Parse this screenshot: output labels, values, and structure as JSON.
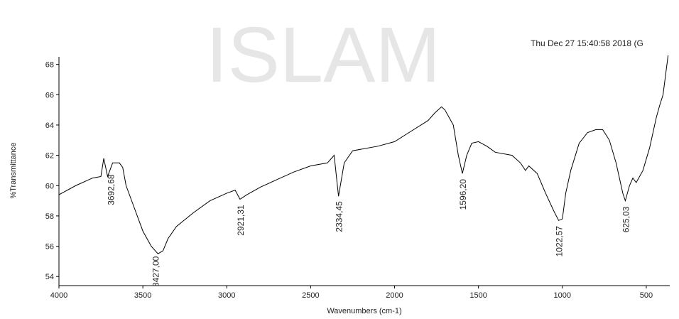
{
  "watermark": "ISLAM",
  "chart_data": {
    "type": "line",
    "title": "Thu Dec 27 15:40:58 2018 (G",
    "x_label": "Wavenumbers (cm-1)",
    "y_label": "%Transmittance",
    "xlim": [
      4000,
      360
    ],
    "ylim": [
      53.4,
      68.5
    ],
    "xticks": [
      4000,
      3500,
      3000,
      2500,
      2000,
      1500,
      1000,
      500
    ],
    "yticks": [
      54,
      56,
      58,
      60,
      62,
      64,
      66,
      68
    ],
    "series": [
      {
        "color": "#000000",
        "x": [
          4000,
          3900,
          3800,
          3750,
          3733,
          3710,
          3680,
          3640,
          3620,
          3600,
          3550,
          3500,
          3450,
          3410,
          3380,
          3350,
          3300,
          3200,
          3100,
          3000,
          2950,
          2921,
          2880,
          2800,
          2700,
          2600,
          2500,
          2400,
          2360,
          2334,
          2300,
          2250,
          2100,
          2000,
          1900,
          1800,
          1760,
          1720,
          1700,
          1650,
          1620,
          1596,
          1570,
          1540,
          1500,
          1450,
          1400,
          1300,
          1250,
          1220,
          1200,
          1150,
          1100,
          1050,
          1022,
          1000,
          980,
          950,
          900,
          850,
          800,
          760,
          720,
          680,
          640,
          625,
          600,
          580,
          560,
          520,
          480,
          440,
          420,
          400,
          370
        ],
        "values": [
          59.4,
          60.0,
          60.5,
          60.6,
          61.8,
          60.6,
          61.5,
          61.5,
          61.2,
          60.0,
          58.5,
          57.0,
          56.0,
          55.5,
          55.7,
          56.5,
          57.3,
          58.2,
          59.0,
          59.5,
          59.7,
          59.1,
          59.4,
          59.9,
          60.4,
          60.9,
          61.3,
          61.5,
          62.0,
          59.3,
          61.5,
          62.3,
          62.6,
          62.9,
          63.6,
          64.3,
          64.8,
          65.2,
          65.0,
          64.0,
          62.0,
          60.8,
          62.0,
          62.8,
          62.9,
          62.6,
          62.2,
          62.0,
          61.5,
          61.0,
          61.3,
          60.8,
          59.5,
          58.3,
          57.7,
          57.8,
          59.5,
          61.0,
          62.8,
          63.5,
          63.7,
          63.7,
          63.0,
          61.5,
          59.5,
          59.0,
          60.0,
          60.5,
          60.2,
          61.0,
          62.5,
          64.5,
          65.3,
          66.0,
          68.6
        ]
      }
    ],
    "annotations": [
      {
        "x": 3692.68,
        "label": "3692,68"
      },
      {
        "x": 3427.0,
        "label": "3427,00"
      },
      {
        "x": 2921.31,
        "label": "2921,31"
      },
      {
        "x": 2334.45,
        "label": "2334,45"
      },
      {
        "x": 1596.2,
        "label": "1596,20"
      },
      {
        "x": 1022.57,
        "label": "1022,57"
      },
      {
        "x": 625.03,
        "label": "625,03"
      }
    ]
  }
}
